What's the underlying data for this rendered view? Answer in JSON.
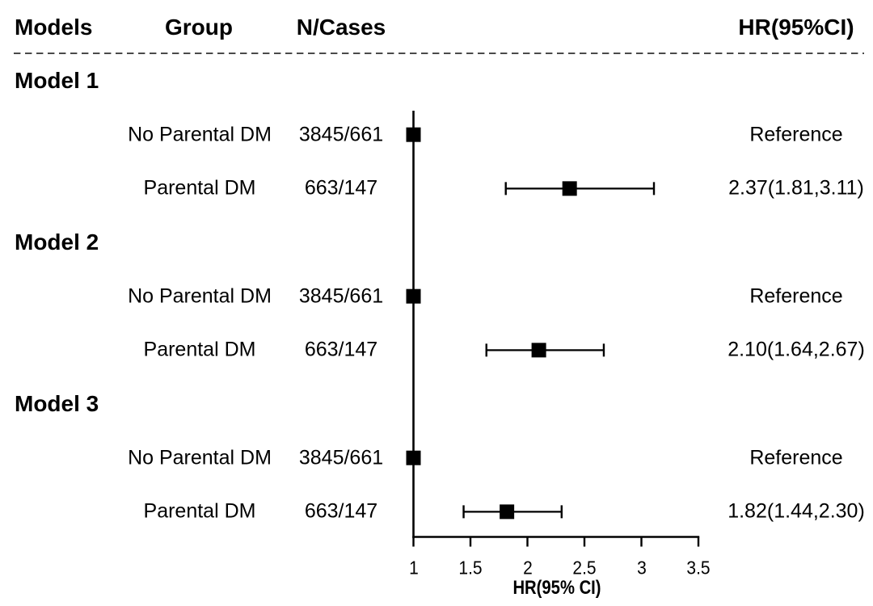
{
  "chart_data": {
    "type": "forest",
    "title": "",
    "columns": {
      "models": "Models",
      "group": "Group",
      "n_cases": "N/Cases",
      "hr": "HR(95%CI)"
    },
    "axis": {
      "label": "HR(95% CI)",
      "range": [
        1,
        3.5
      ],
      "ticks": [
        1,
        1.5,
        2,
        2.5,
        3,
        3.5
      ],
      "tick_labels": [
        "1",
        "1.5",
        "2",
        "2.5",
        "3",
        "3.5"
      ],
      "reference_line": 1
    },
    "groups": [
      {
        "model": "Model 1",
        "rows": [
          {
            "group": "No Parental DM",
            "n_cases": "3845/661",
            "hr": 1,
            "lo": null,
            "hi": null,
            "hr_label": "Reference"
          },
          {
            "group": "Parental DM",
            "n_cases": "663/147",
            "hr": 2.37,
            "lo": 1.81,
            "hi": 3.11,
            "hr_label": "2.37(1.81,3.11)"
          }
        ]
      },
      {
        "model": "Model 2",
        "rows": [
          {
            "group": "No Parental DM",
            "n_cases": "3845/661",
            "hr": 1,
            "lo": null,
            "hi": null,
            "hr_label": "Reference"
          },
          {
            "group": "Parental DM",
            "n_cases": "663/147",
            "hr": 2.1,
            "lo": 1.64,
            "hi": 2.67,
            "hr_label": "2.10(1.64,2.67)"
          }
        ]
      },
      {
        "model": "Model 3",
        "rows": [
          {
            "group": "No Parental DM",
            "n_cases": "3845/661",
            "hr": 1,
            "lo": null,
            "hi": null,
            "hr_label": "Reference"
          },
          {
            "group": "Parental DM",
            "n_cases": "663/147",
            "hr": 1.82,
            "lo": 1.44,
            "hi": 2.3,
            "hr_label": "1.82(1.44,2.30)"
          }
        ]
      }
    ],
    "marker": "square",
    "grid": false,
    "legend": false,
    "colors": {
      "ink": "#000000",
      "separator": "#4a4a4a",
      "background": "#ffffff"
    }
  }
}
